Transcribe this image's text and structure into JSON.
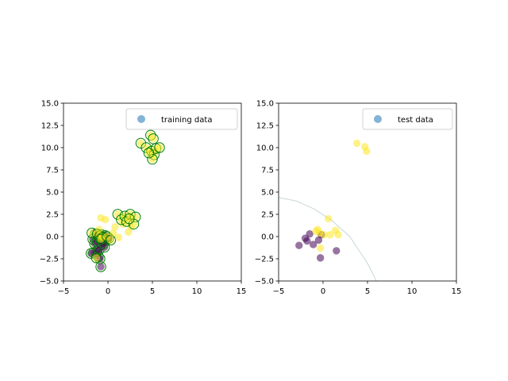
{
  "chart_data": [
    {
      "type": "scatter",
      "title": "",
      "xlabel": "",
      "ylabel": "",
      "xlim": [
        -5,
        15
      ],
      "ylim": [
        -5,
        15
      ],
      "xticks": [
        -5,
        0,
        5,
        10,
        15
      ],
      "yticks": [
        -5.0,
        -2.5,
        0.0,
        2.5,
        5.0,
        7.5,
        10.0,
        12.5,
        15.0
      ],
      "xtick_labels": [
        "−5",
        "0",
        "5",
        "10",
        "15"
      ],
      "ytick_labels": [
        "−5.0",
        "−2.5",
        "0.0",
        "2.5",
        "5.0",
        "7.5",
        "10.0",
        "12.5",
        "15.0"
      ],
      "legend": {
        "label": "training data",
        "placement": "top-right"
      },
      "colors": {
        "class_0": "#440154",
        "class_1": "#fde725",
        "legend_marker": "#1f77b4",
        "highlight_edge": "#008000"
      },
      "series": [
        {
          "name": "training data",
          "points": [
            {
              "x": -1.9,
              "y": -1.9,
              "c": 0,
              "h": 1
            },
            {
              "x": -1.6,
              "y": -1.8,
              "c": 0,
              "h": 1
            },
            {
              "x": -1.3,
              "y": -1.7,
              "c": 0,
              "h": 1
            },
            {
              "x": -1.1,
              "y": -2.2,
              "c": 0,
              "h": 1
            },
            {
              "x": -0.9,
              "y": -2.5,
              "c": 0,
              "h": 1
            },
            {
              "x": -0.8,
              "y": -3.4,
              "c": 0,
              "h": 1
            },
            {
              "x": -1.7,
              "y": -0.3,
              "c": 0,
              "h": 1
            },
            {
              "x": -1.5,
              "y": -0.8,
              "c": 0,
              "h": 1
            },
            {
              "x": -1.2,
              "y": -0.6,
              "c": 0,
              "h": 1
            },
            {
              "x": -0.9,
              "y": -1.0,
              "c": 0,
              "h": 1
            },
            {
              "x": -0.6,
              "y": -0.5,
              "c": 0,
              "h": 1
            },
            {
              "x": -0.4,
              "y": -1.2,
              "c": 0,
              "h": 1
            },
            {
              "x": -0.2,
              "y": -0.4,
              "c": 0,
              "h": 1
            },
            {
              "x": 0.1,
              "y": -0.2,
              "c": 0,
              "h": 1
            },
            {
              "x": -0.3,
              "y": 0.1,
              "c": 0,
              "h": 1
            },
            {
              "x": -1.0,
              "y": -1.5,
              "c": 0,
              "h": 1
            },
            {
              "x": -1.4,
              "y": 0.3,
              "c": 0,
              "h": 1
            },
            {
              "x": -0.7,
              "y": 0.2,
              "c": 0,
              "h": 1
            },
            {
              "x": -0.5,
              "y": -0.8,
              "c": 0,
              "h": 1
            },
            {
              "x": -1.1,
              "y": 0.0,
              "c": 0,
              "h": 1
            },
            {
              "x": -1.8,
              "y": 0.4,
              "c": 1,
              "h": 1
            },
            {
              "x": -1.2,
              "y": 0.3,
              "c": 1,
              "h": 1
            },
            {
              "x": -0.9,
              "y": 0.1,
              "c": 1,
              "h": 1
            },
            {
              "x": -0.6,
              "y": -0.1,
              "c": 1,
              "h": 1
            },
            {
              "x": -1.3,
              "y": -2.4,
              "c": 1,
              "h": 1
            },
            {
              "x": -0.8,
              "y": -0.3,
              "c": 1,
              "h": 1
            },
            {
              "x": -0.1,
              "y": 0.0,
              "c": 1,
              "h": 1
            },
            {
              "x": 0.3,
              "y": -0.4,
              "c": 1,
              "h": 1
            },
            {
              "x": -0.8,
              "y": 2.1,
              "c": 1,
              "h": 0
            },
            {
              "x": -0.3,
              "y": 1.9,
              "c": 1,
              "h": 0
            },
            {
              "x": -1.0,
              "y": 0.8,
              "c": 1,
              "h": 0
            },
            {
              "x": 0.8,
              "y": 1.1,
              "c": 1,
              "h": 0
            },
            {
              "x": 1.2,
              "y": -0.1,
              "c": 1,
              "h": 0
            },
            {
              "x": 1.7,
              "y": 1.4,
              "c": 1,
              "h": 0
            },
            {
              "x": 2.3,
              "y": 0.5,
              "c": 1,
              "h": 0
            },
            {
              "x": 2.6,
              "y": 1.1,
              "c": 1,
              "h": 0
            },
            {
              "x": 0.6,
              "y": 0.4,
              "c": 1,
              "h": 0
            },
            {
              "x": 1.1,
              "y": 2.5,
              "c": 1,
              "h": 1
            },
            {
              "x": 1.5,
              "y": 1.9,
              "c": 1,
              "h": 1
            },
            {
              "x": 1.9,
              "y": 2.3,
              "c": 1,
              "h": 1
            },
            {
              "x": 2.1,
              "y": 1.7,
              "c": 1,
              "h": 1
            },
            {
              "x": 2.5,
              "y": 2.5,
              "c": 1,
              "h": 1
            },
            {
              "x": 3.1,
              "y": 2.2,
              "c": 1,
              "h": 1
            },
            {
              "x": 2.9,
              "y": 1.4,
              "c": 1,
              "h": 1
            },
            {
              "x": 2.4,
              "y": 2.0,
              "c": 1,
              "h": 1
            },
            {
              "x": 3.7,
              "y": 10.5,
              "c": 1,
              "h": 1
            },
            {
              "x": 4.3,
              "y": 10.0,
              "c": 1,
              "h": 1
            },
            {
              "x": 4.8,
              "y": 11.4,
              "c": 1,
              "h": 1
            },
            {
              "x": 5.1,
              "y": 11.0,
              "c": 1,
              "h": 1
            },
            {
              "x": 4.9,
              "y": 9.6,
              "c": 1,
              "h": 1
            },
            {
              "x": 5.2,
              "y": 9.2,
              "c": 1,
              "h": 1
            },
            {
              "x": 5.0,
              "y": 8.7,
              "c": 1,
              "h": 1
            },
            {
              "x": 5.4,
              "y": 9.9,
              "c": 1,
              "h": 1
            },
            {
              "x": 5.8,
              "y": 10.0,
              "c": 1,
              "h": 1
            },
            {
              "x": 4.6,
              "y": 9.4,
              "c": 1,
              "h": 1
            }
          ]
        }
      ]
    },
    {
      "type": "scatter",
      "title": "",
      "xlabel": "",
      "ylabel": "",
      "xlim": [
        -5,
        15
      ],
      "ylim": [
        -5,
        15
      ],
      "xticks": [
        -5,
        0,
        5,
        10,
        15
      ],
      "yticks": [
        -5.0,
        -2.5,
        0.0,
        2.5,
        5.0,
        7.5,
        10.0,
        12.5,
        15.0
      ],
      "xtick_labels": [
        "−5",
        "0",
        "5",
        "10",
        "15"
      ],
      "ytick_labels": [
        "−5.0",
        "−2.5",
        "0.0",
        "2.5",
        "5.0",
        "7.5",
        "10.0",
        "12.5",
        "15.0"
      ],
      "legend": {
        "label": "test data",
        "placement": "top-right"
      },
      "colors": {
        "class_0": "#440154",
        "class_1": "#fde725",
        "legend_marker": "#1f77b4",
        "boundary": "#b0c4c8"
      },
      "decision_boundary": {
        "shape": "circular-arc",
        "points": [
          [
            -5,
            4.4
          ],
          [
            -3,
            4.0
          ],
          [
            -1,
            3.1
          ],
          [
            1,
            1.8
          ],
          [
            3,
            0.0
          ],
          [
            5,
            -3.0
          ],
          [
            6,
            -5.0
          ]
        ]
      },
      "series": [
        {
          "name": "test data",
          "points": [
            {
              "x": -2.7,
              "y": -1.0,
              "c": 0
            },
            {
              "x": -2.0,
              "y": -0.2,
              "c": 0
            },
            {
              "x": -1.8,
              "y": -0.5,
              "c": 0
            },
            {
              "x": -1.5,
              "y": 0.3,
              "c": 0
            },
            {
              "x": -1.1,
              "y": -0.9,
              "c": 0
            },
            {
              "x": -0.5,
              "y": -0.4,
              "c": 0
            },
            {
              "x": -0.2,
              "y": 0.2,
              "c": 0
            },
            {
              "x": -0.3,
              "y": -2.4,
              "c": 0
            },
            {
              "x": 1.5,
              "y": -1.6,
              "c": 0
            },
            {
              "x": -0.6,
              "y": 0.8,
              "c": 1
            },
            {
              "x": -0.4,
              "y": 0.4,
              "c": 1
            },
            {
              "x": 0.1,
              "y": 0.2,
              "c": 1
            },
            {
              "x": 0.6,
              "y": 2.0,
              "c": 1
            },
            {
              "x": 0.8,
              "y": 0.2,
              "c": 1
            },
            {
              "x": 1.4,
              "y": 0.7,
              "c": 1
            },
            {
              "x": 1.7,
              "y": 0.2,
              "c": 1
            },
            {
              "x": -0.3,
              "y": -1.3,
              "c": 1
            },
            {
              "x": -0.8,
              "y": 0.6,
              "c": 1
            },
            {
              "x": 3.8,
              "y": 10.5,
              "c": 1
            },
            {
              "x": 4.7,
              "y": 10.1,
              "c": 1
            },
            {
              "x": 4.9,
              "y": 9.6,
              "c": 1
            }
          ]
        }
      ]
    }
  ]
}
